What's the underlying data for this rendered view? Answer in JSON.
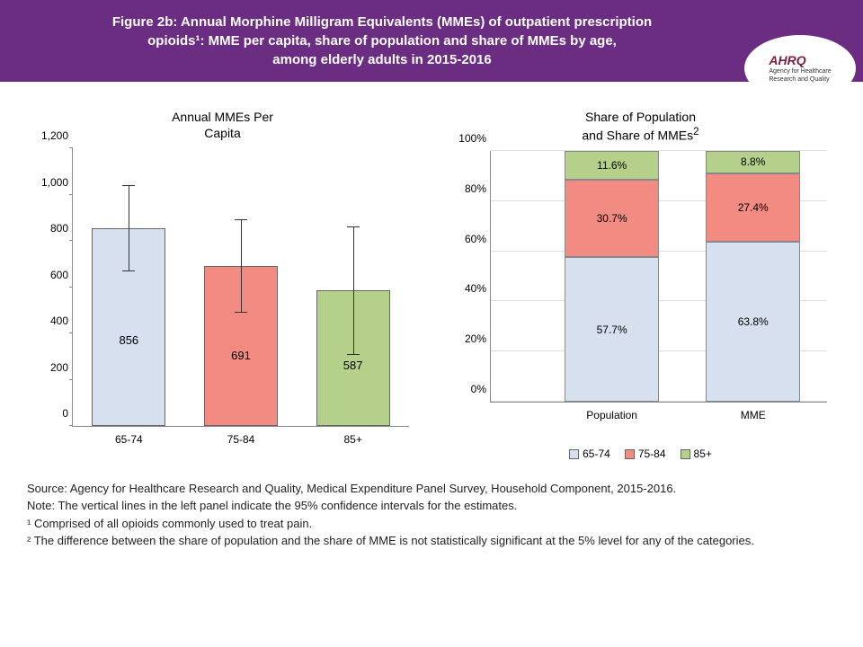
{
  "header": {
    "line1": "Figure 2b: Annual Morphine Milligram Equivalents (MMEs) of outpatient prescription",
    "line2": "opioids¹: MME per capita, share of population and share of MMEs by age,",
    "line3": "among elderly adults in 2015-2016",
    "bg_color": "#6a2d82",
    "logo_brand": "AHRQ",
    "logo_sub": "Agency for Healthcare\nResearch and Quality"
  },
  "colors": {
    "c65_74": "#d6e0ee",
    "c75_84": "#f28b82",
    "c85": "#b5d08a"
  },
  "left_chart": {
    "title": "Annual MMEs Per\nCapita",
    "ymax": 1200,
    "ytick_step": 200,
    "yticks": [
      "0",
      "200",
      "400",
      "600",
      "800",
      "1,000",
      "1,200"
    ],
    "categories": [
      "65-74",
      "75-84",
      "85+"
    ],
    "values": [
      856,
      691,
      587
    ],
    "err_low": [
      670,
      490,
      310
    ],
    "err_high": [
      1040,
      890,
      860
    ],
    "bar_colors": [
      "#d6e0ee",
      "#f28b82",
      "#b5d08a"
    ]
  },
  "right_chart": {
    "title_l1": "Share of Population",
    "title_l2": "and Share of MMEs",
    "sup": "2",
    "categories": [
      "Population",
      "MME"
    ],
    "series": {
      "65-74": [
        57.7,
        63.8
      ],
      "75-84": [
        30.7,
        27.4
      ],
      "85+": [
        11.6,
        8.8
      ]
    },
    "yticks": [
      "0%",
      "20%",
      "40%",
      "60%",
      "80%",
      "100%"
    ]
  },
  "legend": {
    "items": [
      "65-74",
      "75-84",
      "85+"
    ]
  },
  "footnotes": {
    "source": "Source: Agency for Healthcare Research and Quality, Medical Expenditure Panel Survey, Household Component, 2015-2016.",
    "note": "Note: The vertical lines in the left panel indicate the 95% confidence intervals for the estimates.",
    "f1": "¹ Comprised of all opioids commonly used to treat pain.",
    "f2": "² The difference between the share of population and the share of MME is not statistically significant at the 5% level for any of the categories."
  }
}
